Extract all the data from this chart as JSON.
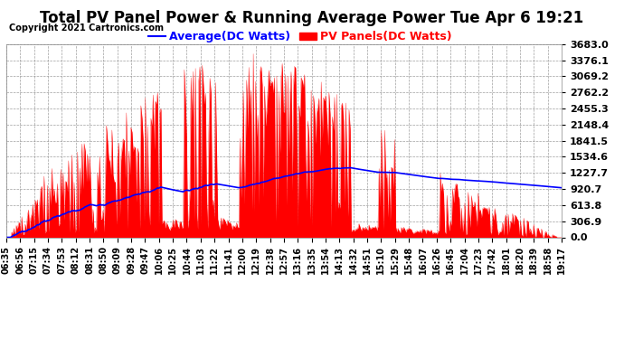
{
  "title": "Total PV Panel Power & Running Average Power Tue Apr 6 19:21",
  "copyright": "Copyright 2021 Cartronics.com",
  "legend_average": "Average(DC Watts)",
  "legend_pv": "PV Panels(DC Watts)",
  "fill_color": "#FF0000",
  "avg_line_color": "#0000FF",
  "pv_line_color": "#FF0000",
  "background_color": "#FFFFFF",
  "grid_color": "#888888",
  "yticks": [
    0.0,
    306.9,
    613.8,
    920.7,
    1227.7,
    1534.6,
    1841.5,
    2148.4,
    2455.3,
    2762.2,
    3069.2,
    3376.1,
    3683.0
  ],
  "ymax": 3683.0,
  "xtick_labels": [
    "06:35",
    "06:56",
    "07:15",
    "07:34",
    "07:53",
    "08:12",
    "08:31",
    "08:50",
    "09:09",
    "09:28",
    "09:47",
    "10:06",
    "10:25",
    "10:44",
    "11:03",
    "11:22",
    "11:41",
    "12:00",
    "12:19",
    "12:38",
    "12:57",
    "13:16",
    "13:35",
    "13:54",
    "14:13",
    "14:32",
    "14:51",
    "15:10",
    "15:29",
    "15:48",
    "16:07",
    "16:26",
    "16:45",
    "17:04",
    "17:23",
    "17:42",
    "18:01",
    "18:20",
    "18:39",
    "18:58",
    "19:17"
  ],
  "n_ticks": 41,
  "title_fontsize": 12,
  "copyright_fontsize": 7,
  "legend_fontsize": 9,
  "tick_fontsize": 7,
  "ytick_fontsize": 8
}
